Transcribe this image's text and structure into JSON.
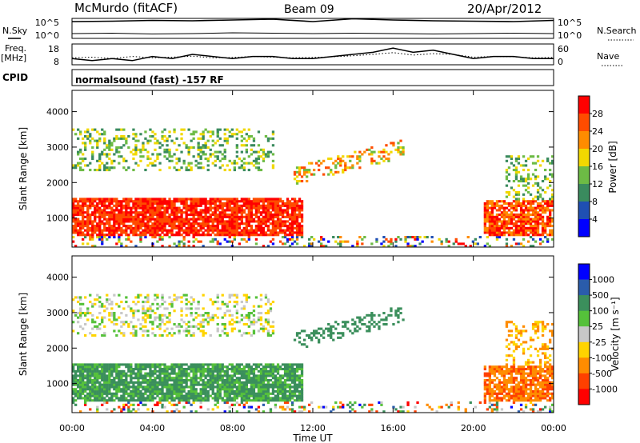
{
  "header": {
    "station": "McMurdo (fitACF)",
    "beam": "Beam 09",
    "date": "20/Apr/2012"
  },
  "strip_labels": {
    "n_sky": "N.Sky",
    "n_search": "N.Search",
    "freq": "Freq.",
    "freq_unit": "[MHz]",
    "nave": "Nave",
    "cpid": "CPID",
    "cpid_value": "normalsound (fast) -157 RF"
  },
  "colors": {
    "power": [
      "#0000ff",
      "#1f4fb3",
      "#3a8b5e",
      "#6dbb45",
      "#f1d800",
      "#ff8c00",
      "#ff4c00",
      "#ff0000"
    ],
    "velocity": [
      "#0000ff",
      "#2a5cab",
      "#3b8f5c",
      "#55c13a",
      "#c8c8c8",
      "#ffd400",
      "#ff8c00",
      "#ff4000",
      "#ff0000"
    ]
  },
  "chart_data": [
    {
      "type": "line",
      "panel": "noise",
      "left_ticks": [
        "10^5",
        "10^0"
      ],
      "right_ticks": [
        "10^5",
        "10^0"
      ],
      "x": [
        0,
        2,
        4,
        6,
        8,
        10,
        12,
        14,
        16,
        18,
        20,
        22,
        24
      ],
      "series": [
        {
          "name": "N.Sky",
          "values": [
            4.2,
            4.3,
            4.5,
            4.4,
            4.6,
            4.8,
            4.2,
            4.9,
            4.6,
            4.4,
            4.3,
            4.2,
            4.5
          ]
        },
        {
          "name": "N.Search",
          "values": [
            1.2,
            1.3,
            1.1,
            1.2,
            1.4,
            1.3,
            1.2,
            1.3,
            1.2,
            1.1,
            1.2,
            1.3,
            1.2
          ]
        }
      ]
    },
    {
      "type": "line",
      "panel": "frequency_nave",
      "left_ticks": [
        "18",
        "8"
      ],
      "right_ticks": [
        "60",
        "0"
      ],
      "x": [
        0,
        1,
        2,
        3,
        4,
        5,
        6,
        7,
        8,
        9,
        10,
        11,
        12,
        13,
        14,
        15,
        16,
        17,
        18,
        19,
        20,
        21,
        22,
        23,
        24
      ],
      "series": [
        {
          "name": "Freq.",
          "values": [
            11,
            10,
            11,
            10,
            12,
            11,
            13,
            12,
            11,
            12,
            12,
            11,
            11,
            12,
            13,
            14,
            16,
            14,
            15,
            13,
            11,
            12,
            12,
            11,
            11
          ]
        },
        {
          "name": "Nave",
          "values": [
            20,
            22,
            18,
            24,
            20,
            22,
            25,
            20,
            21,
            24,
            22,
            20,
            21,
            23,
            26,
            30,
            35,
            28,
            32,
            30,
            22,
            24,
            23,
            20,
            21
          ]
        }
      ]
    },
    {
      "type": "heatmap",
      "panel": "power",
      "title": "",
      "xlabel": "",
      "ylabel": "Slant Range [km]",
      "ylim": [
        180,
        4600
      ],
      "xlim": [
        0,
        24
      ],
      "yticks": [
        "1000",
        "2000",
        "3000",
        "4000"
      ],
      "colorbar_label": "Power [dB]",
      "colorbar_ticks": [
        "28",
        "24",
        "20",
        "16",
        "12",
        "8",
        "4"
      ],
      "colorbar_range": [
        0,
        32
      ]
    },
    {
      "type": "heatmap",
      "panel": "velocity",
      "title": "",
      "xlabel": "Time UT",
      "ylabel": "Slant Range [km]",
      "ylim": [
        180,
        4600
      ],
      "xlim": [
        0,
        24
      ],
      "xticks": [
        "00:00",
        "04:00",
        "08:00",
        "12:00",
        "16:00",
        "20:00",
        "00:00"
      ],
      "yticks": [
        "1000",
        "2000",
        "3000",
        "4000"
      ],
      "colorbar_label": "Velocity [m s⁻¹]",
      "colorbar_ticks": [
        "1000",
        "500",
        "100",
        "25",
        "-25",
        "-100",
        "-500",
        "-1000"
      ]
    }
  ]
}
